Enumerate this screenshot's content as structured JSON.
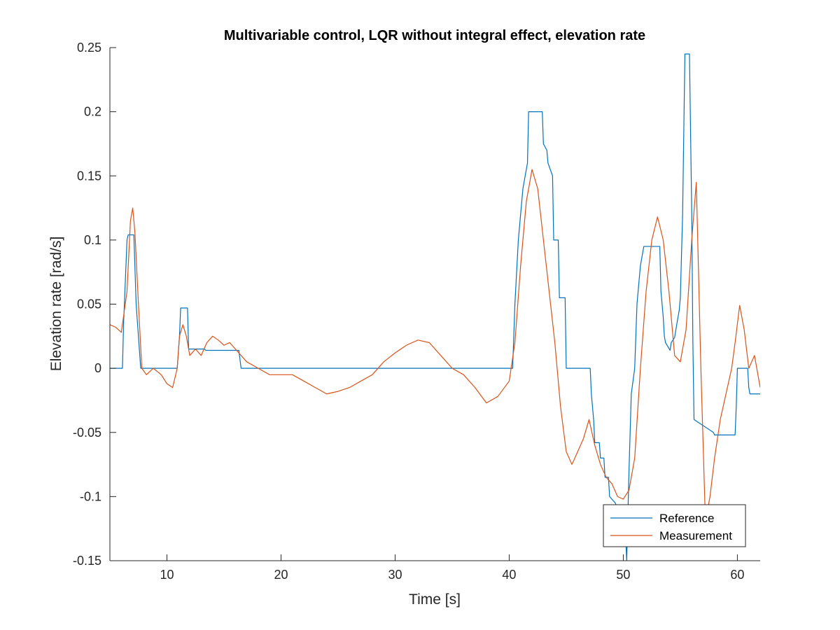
{
  "chart_data": {
    "type": "line",
    "title": "Multivariable control, LQR without integral effect, elevation rate",
    "xlabel": "Time [s]",
    "ylabel": "Elevation rate [rad/s]",
    "xlim": [
      5,
      62
    ],
    "ylim": [
      -0.15,
      0.25
    ],
    "xticks": [
      10,
      20,
      30,
      40,
      50,
      60
    ],
    "xtick_labels": [
      "10",
      "20",
      "30",
      "40",
      "50",
      "60"
    ],
    "yticks": [
      -0.15,
      -0.1,
      -0.05,
      0,
      0.05,
      0.1,
      0.15,
      0.2,
      0.25
    ],
    "ytick_labels": [
      "-0.15",
      "-0.1",
      "-0.05",
      "0",
      "0.05",
      "0.1",
      "0.15",
      "0.2",
      "0.25"
    ],
    "grid": false,
    "legend_position": "bottom-right",
    "series": [
      {
        "name": "Reference",
        "color": "#0072BD",
        "x": [
          5,
          6.1,
          6.2,
          6.5,
          6.6,
          7.1,
          7.3,
          7.7,
          10.9,
          11.1,
          11.2,
          11.8,
          11.9,
          13.3,
          13.4,
          16.3,
          16.5,
          35,
          40.3,
          40.5,
          40.8,
          41,
          41.2,
          41.4,
          41.6,
          41.7,
          42.9,
          43.0,
          43.3,
          43.4,
          43.8,
          43.9,
          44.3,
          44.4,
          44.9,
          45.0,
          47.1,
          47.2,
          47.4,
          47.5,
          47.9,
          48.0,
          48.3,
          48.4,
          48.7,
          48.8,
          49.3,
          49.5,
          49.7,
          50.1,
          50.3,
          50.5,
          50.7,
          51.0,
          51.2,
          51.5,
          51.8,
          52.0,
          52.1,
          53.2,
          53.3,
          53.5,
          53.6,
          53.7,
          54.1,
          54.2,
          54.5,
          54.7,
          54.9,
          55.0,
          55.2,
          55.4,
          55.8,
          56.0,
          56.1,
          56.2,
          57.9,
          58.0,
          59.8,
          59.9,
          60.0,
          60.1,
          60.9,
          61.0,
          61.1,
          62.0
        ],
        "y": [
          0,
          0,
          0.035,
          0.1,
          0.104,
          0.104,
          0.05,
          0,
          0,
          0.025,
          0.047,
          0.047,
          0.015,
          0.015,
          0.014,
          0.014,
          0,
          0,
          0,
          0.05,
          0.1,
          0.12,
          0.14,
          0.15,
          0.16,
          0.2,
          0.2,
          0.175,
          0.17,
          0.16,
          0.15,
          0.1,
          0.1,
          0.055,
          0.055,
          0,
          0,
          -0.02,
          -0.04,
          -0.058,
          -0.058,
          -0.07,
          -0.07,
          -0.085,
          -0.085,
          -0.1,
          -0.105,
          -0.11,
          -0.11,
          -0.11,
          -0.15,
          -0.08,
          -0.02,
          0,
          0.05,
          0.08,
          0.095,
          0.095,
          0.095,
          0.095,
          0.06,
          0.04,
          0.025,
          0.02,
          0.014,
          0.02,
          0.024,
          0.035,
          0.045,
          0.055,
          0.12,
          0.245,
          0.245,
          0.12,
          0.02,
          -0.04,
          -0.05,
          -0.052,
          -0.052,
          -0.03,
          0,
          0,
          0,
          -0.015,
          -0.02,
          -0.02
        ]
      },
      {
        "name": "Measurement",
        "color": "#D95319",
        "x": [
          5,
          5.5,
          6,
          6.5,
          6.8,
          7.0,
          7.2,
          7.5,
          7.8,
          8.2,
          8.8,
          9.5,
          10.0,
          10.5,
          10.9,
          11.1,
          11.4,
          11.7,
          12.0,
          12.5,
          13.0,
          13.5,
          14.0,
          14.5,
          15.0,
          15.5,
          16.0,
          16.5,
          17.0,
          18.0,
          19.0,
          20.0,
          21.0,
          22.0,
          23.0,
          24.0,
          25.0,
          26.0,
          27.0,
          28.0,
          29.0,
          30.0,
          31.0,
          32.0,
          33.0,
          34.0,
          35.0,
          36.0,
          37.0,
          38.0,
          39.0,
          40.0,
          40.5,
          41.0,
          41.5,
          42.0,
          42.5,
          43.0,
          43.5,
          44.0,
          44.5,
          45.0,
          45.5,
          46.0,
          46.5,
          47.0,
          47.5,
          48.0,
          48.5,
          49.0,
          49.5,
          50.0,
          50.5,
          51.0,
          51.5,
          52.0,
          52.5,
          53.0,
          53.5,
          54.0,
          54.5,
          55.0,
          55.5,
          56.0,
          56.4,
          56.8,
          57.2,
          57.6,
          58.0,
          58.5,
          59.0,
          59.5,
          59.8,
          60.2,
          60.6,
          61.0,
          61.5,
          62.0
        ],
        "y": [
          0.034,
          0.032,
          0.028,
          0.06,
          0.115,
          0.125,
          0.105,
          0.05,
          0.0,
          -0.005,
          0.0,
          -0.005,
          -0.012,
          -0.015,
          0.0,
          0.025,
          0.034,
          0.025,
          0.01,
          0.015,
          0.01,
          0.02,
          0.025,
          0.022,
          0.018,
          0.02,
          0.015,
          0.01,
          0.005,
          0.0,
          -0.005,
          -0.005,
          -0.005,
          -0.01,
          -0.015,
          -0.02,
          -0.018,
          -0.015,
          -0.01,
          -0.005,
          0.005,
          0.012,
          0.018,
          0.022,
          0.02,
          0.01,
          0.0,
          -0.005,
          -0.015,
          -0.027,
          -0.022,
          -0.01,
          0.02,
          0.08,
          0.13,
          0.155,
          0.14,
          0.1,
          0.06,
          0.02,
          -0.03,
          -0.065,
          -0.075,
          -0.065,
          -0.055,
          -0.04,
          -0.06,
          -0.075,
          -0.085,
          -0.09,
          -0.1,
          -0.102,
          -0.095,
          -0.07,
          0.0,
          0.06,
          0.1,
          0.118,
          0.1,
          0.06,
          0.01,
          0.005,
          0.03,
          0.1,
          0.145,
          0.0,
          -0.12,
          -0.1,
          -0.07,
          -0.04,
          -0.02,
          0.0,
          0.02,
          0.049,
          0.03,
          0.0,
          0.01,
          -0.015
        ]
      }
    ]
  }
}
